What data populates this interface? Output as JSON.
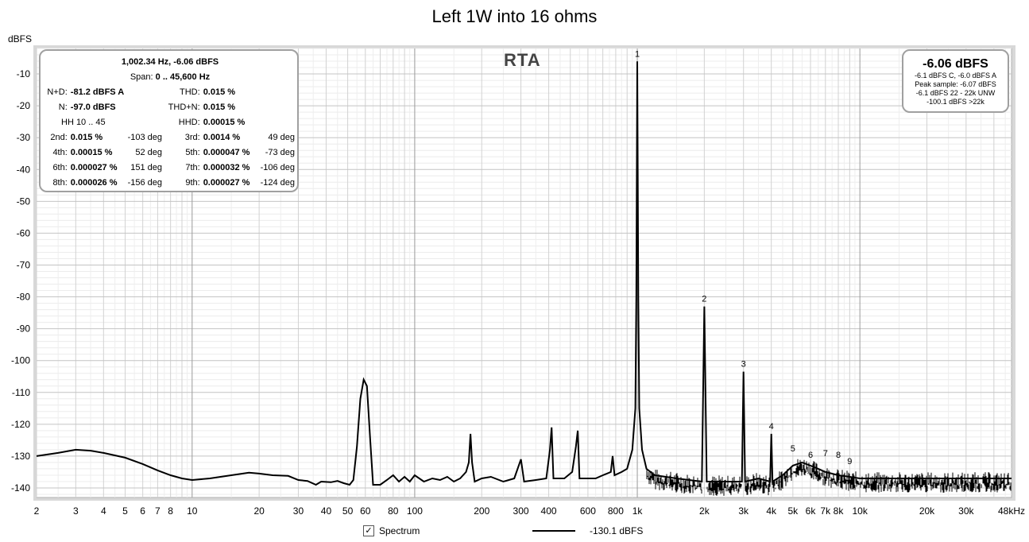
{
  "chart_data": {
    "type": "line",
    "title": "Left 1W into 16 ohms",
    "ylabel": "dBFS",
    "xlabel": "",
    "x_scale": "log",
    "xlim": [
      2,
      48000
    ],
    "ylim": [
      -143,
      -2
    ],
    "grid": true,
    "legend_position": "bottom-center",
    "y_ticks": [
      -10,
      -20,
      -30,
      -40,
      -50,
      -60,
      -70,
      -80,
      -90,
      -100,
      -110,
      -120,
      -130,
      -140
    ],
    "x_ticks": [
      {
        "v": 2,
        "label": "2"
      },
      {
        "v": 3,
        "label": "3"
      },
      {
        "v": 4,
        "label": "4"
      },
      {
        "v": 5,
        "label": "5"
      },
      {
        "v": 6,
        "label": "6"
      },
      {
        "v": 7,
        "label": "7"
      },
      {
        "v": 8,
        "label": "8"
      },
      {
        "v": 10,
        "label": "10"
      },
      {
        "v": 20,
        "label": "20"
      },
      {
        "v": 30,
        "label": "30"
      },
      {
        "v": 40,
        "label": "40"
      },
      {
        "v": 50,
        "label": "50"
      },
      {
        "v": 60,
        "label": "60"
      },
      {
        "v": 80,
        "label": "80"
      },
      {
        "v": 100,
        "label": "100"
      },
      {
        "v": 200,
        "label": "200"
      },
      {
        "v": 300,
        "label": "300"
      },
      {
        "v": 400,
        "label": "400"
      },
      {
        "v": 600,
        "label": "600"
      },
      {
        "v": 800,
        "label": "800"
      },
      {
        "v": 1000,
        "label": "1k"
      },
      {
        "v": 2000,
        "label": "2k"
      },
      {
        "v": 3000,
        "label": "3k"
      },
      {
        "v": 4000,
        "label": "4k"
      },
      {
        "v": 5000,
        "label": "5k"
      },
      {
        "v": 6000,
        "label": "6k"
      },
      {
        "v": 7000,
        "label": "7k"
      },
      {
        "v": 8000,
        "label": "8k"
      },
      {
        "v": 10000,
        "label": "10k"
      },
      {
        "v": 20000,
        "label": "20k"
      },
      {
        "v": 30000,
        "label": "30k"
      },
      {
        "v": 48000,
        "label": "48kHz"
      }
    ],
    "series": [
      {
        "name": "Spectrum",
        "color": "#000000",
        "points": [
          [
            2,
            -130
          ],
          [
            2.5,
            -129
          ],
          [
            3,
            -128
          ],
          [
            3.5,
            -128.3
          ],
          [
            4,
            -129
          ],
          [
            5,
            -130.5
          ],
          [
            6,
            -132.5
          ],
          [
            7,
            -134.5
          ],
          [
            8,
            -136
          ],
          [
            9,
            -137
          ],
          [
            10,
            -137.5
          ],
          [
            12,
            -137
          ],
          [
            15,
            -136
          ],
          [
            18,
            -135.2
          ],
          [
            20,
            -135.5
          ],
          [
            23,
            -136
          ],
          [
            27,
            -136.2
          ],
          [
            30,
            -137.5
          ],
          [
            33,
            -137.8
          ],
          [
            36,
            -139
          ],
          [
            38,
            -138
          ],
          [
            42,
            -138.2
          ],
          [
            45,
            -137.8
          ],
          [
            48,
            -138.5
          ],
          [
            51,
            -139
          ],
          [
            53,
            -137.5
          ],
          [
            55,
            -127
          ],
          [
            57,
            -112
          ],
          [
            59,
            -106
          ],
          [
            61,
            -108
          ],
          [
            63,
            -124
          ],
          [
            65,
            -139
          ],
          [
            70,
            -139
          ],
          [
            75,
            -137.5
          ],
          [
            80,
            -136
          ],
          [
            85,
            -138
          ],
          [
            90,
            -136.5
          ],
          [
            95,
            -138
          ],
          [
            100,
            -136
          ],
          [
            110,
            -138
          ],
          [
            120,
            -137
          ],
          [
            130,
            -137.5
          ],
          [
            140,
            -136.5
          ],
          [
            150,
            -138
          ],
          [
            160,
            -137
          ],
          [
            170,
            -135
          ],
          [
            175,
            -132
          ],
          [
            178,
            -123
          ],
          [
            181,
            -132
          ],
          [
            186,
            -138
          ],
          [
            200,
            -137
          ],
          [
            220,
            -136.5
          ],
          [
            250,
            -138
          ],
          [
            280,
            -137
          ],
          [
            300,
            -131
          ],
          [
            310,
            -138
          ],
          [
            350,
            -137.5
          ],
          [
            390,
            -137
          ],
          [
            405,
            -128
          ],
          [
            412,
            -121
          ],
          [
            420,
            -137
          ],
          [
            470,
            -137
          ],
          [
            510,
            -135
          ],
          [
            530,
            -127
          ],
          [
            540,
            -122
          ],
          [
            550,
            -137
          ],
          [
            600,
            -137
          ],
          [
            650,
            -137
          ],
          [
            700,
            -136
          ],
          [
            760,
            -135
          ],
          [
            775,
            -130
          ],
          [
            790,
            -136
          ],
          [
            850,
            -135
          ],
          [
            900,
            -134
          ],
          [
            950,
            -128
          ],
          [
            980,
            -115
          ],
          [
            990,
            -80
          ],
          [
            1000,
            -6.06
          ],
          [
            1010,
            -80
          ],
          [
            1020,
            -115
          ],
          [
            1050,
            -128
          ],
          [
            1100,
            -134
          ],
          [
            1200,
            -136
          ],
          [
            1500,
            -137
          ],
          [
            1950,
            -138
          ],
          [
            2000,
            -83
          ],
          [
            2050,
            -138
          ],
          [
            2500,
            -138
          ],
          [
            2950,
            -138
          ],
          [
            3000,
            -103.5
          ],
          [
            3050,
            -138
          ],
          [
            3500,
            -137
          ],
          [
            3950,
            -138
          ],
          [
            4000,
            -123
          ],
          [
            4050,
            -138
          ],
          [
            4500,
            -136
          ],
          [
            5000,
            -133
          ],
          [
            5500,
            -132
          ],
          [
            6000,
            -133
          ],
          [
            6500,
            -134
          ],
          [
            7000,
            -135
          ],
          [
            8000,
            -136
          ],
          [
            9000,
            -136.5
          ],
          [
            10000,
            -137
          ],
          [
            15000,
            -137
          ],
          [
            20000,
            -137
          ],
          [
            30000,
            -137
          ],
          [
            40000,
            -137
          ],
          [
            48000,
            -137
          ]
        ]
      }
    ],
    "harmonic_markers": [
      {
        "label": "1",
        "x": 1000,
        "y": -6.06
      },
      {
        "label": "2",
        "x": 2000,
        "y": -83
      },
      {
        "label": "3",
        "x": 3000,
        "y": -103.5
      },
      {
        "label": "4",
        "x": 4000,
        "y": -123
      },
      {
        "label": "5",
        "x": 5000,
        "y": -130
      },
      {
        "label": "6",
        "x": 6000,
        "y": -132
      },
      {
        "label": "7",
        "x": 7000,
        "y": -131.5
      },
      {
        "label": "8",
        "x": 8000,
        "y": -132
      },
      {
        "label": "9",
        "x": 9000,
        "y": -134
      }
    ]
  },
  "rta_label": "RTA",
  "stats": {
    "header1": "1,002.34 Hz, -6.06 dBFS",
    "header2_label": "Span:",
    "header2_value": "0 .. 45,600 Hz",
    "nd_label": "N+D:",
    "nd_value": "-81.2 dBFS A",
    "thd_label": "THD:",
    "thd_value": "0.015 %",
    "n_label": "N:",
    "n_value": "-97.0 dBFS",
    "thdn_label": "THD+N:",
    "thdn_value": "0.015 %",
    "hh_label": "HH 10 .. 45",
    "hhd_label": "HHD:",
    "hhd_value": "0.00015 %",
    "harmonics": [
      {
        "l1": "2nd:",
        "v1": "0.015 %",
        "d1": "-103 deg",
        "l2": "3rd:",
        "v2": "0.0014 %",
        "d2": "49 deg"
      },
      {
        "l1": "4th:",
        "v1": "0.00015 %",
        "d1": "52 deg",
        "l2": "5th:",
        "v2": "0.000047 %",
        "d2": "-73 deg"
      },
      {
        "l1": "6th:",
        "v1": "0.000027 %",
        "d1": "151 deg",
        "l2": "7th:",
        "v2": "0.000032 %",
        "d2": "-106 deg"
      },
      {
        "l1": "8th:",
        "v1": "0.000026 %",
        "d1": "-156 deg",
        "l2": "9th:",
        "v2": "0.000027 %",
        "d2": "-124 deg"
      }
    ]
  },
  "level": {
    "main": "-6.06 dBFS",
    "line1": "-6.1 dBFS C, -6.0 dBFS A",
    "line2": "Peak sample: -6.07 dBFS",
    "line3": "-6.1 dBFS 22 - 22k UNW",
    "line4": "-100.1 dBFS >22k"
  },
  "legend": {
    "checked_glyph": "✓",
    "name": "Spectrum",
    "value": "-130.1 dBFS"
  }
}
